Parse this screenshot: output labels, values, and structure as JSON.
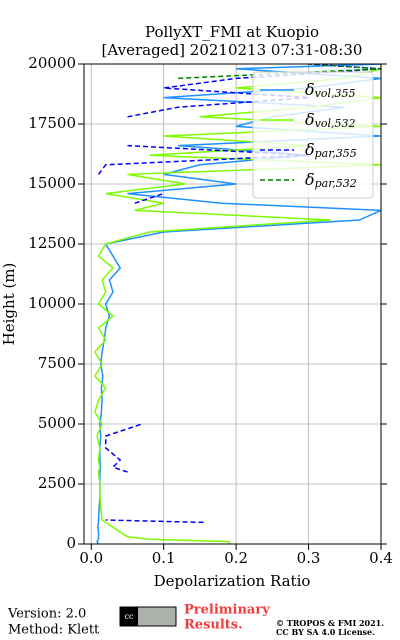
{
  "chart_data": {
    "type": "line",
    "orientation": "profile",
    "title": [
      "PollyXT_FMI at Kuopio",
      "[Averaged] 20210213 07:31-08:30"
    ],
    "x_label": "Depolarization Ratio",
    "y_label": "Height (m)",
    "xlim": [
      -0.01,
      0.4
    ],
    "ylim": [
      0,
      20000
    ],
    "xticks": [
      {
        "value": 0,
        "label": "0.0"
      },
      {
        "value": 0.1,
        "label": "0.1"
      },
      {
        "value": 0.2,
        "label": "0.2"
      },
      {
        "value": 0.3,
        "label": "0.3"
      },
      {
        "value": 0.4,
        "label": "0.4"
      }
    ],
    "yticks": [
      0,
      2500,
      5000,
      7500,
      10000,
      12500,
      15000,
      17500,
      20000
    ],
    "grid": true,
    "legend": "upper right",
    "heights": [
      0,
      100,
      200,
      300,
      500,
      700,
      900,
      1000,
      1500,
      2000,
      2500,
      3000,
      3200,
      3500,
      4000,
      4500,
      5000,
      5500,
      6000,
      6500,
      7000,
      7500,
      8000,
      8500,
      9000,
      9500,
      10000,
      10500,
      11000,
      11500,
      12000,
      12500,
      13000,
      13500,
      13900,
      14200,
      14600,
      15000,
      15400,
      15800,
      16200,
      16600,
      17000,
      17400,
      17800,
      18200,
      18600,
      19000,
      19400,
      19800,
      20000
    ],
    "series": [
      {
        "name": "δvol,355",
        "color": "#1e90ff",
        "dash": false,
        "values": [
          0.01,
          0.008,
          0.01,
          0.01,
          0.01,
          0.009,
          0.01,
          0.01,
          0.011,
          0.012,
          0.012,
          0.012,
          0.013,
          0.012,
          0.012,
          0.013,
          0.012,
          0.014,
          0.015,
          0.014,
          0.016,
          0.013,
          0.015,
          0.018,
          0.02,
          0.025,
          0.02,
          0.03,
          0.025,
          0.04,
          0.03,
          0.02,
          0.1,
          0.37,
          0.4,
          0.18,
          0.05,
          0.2,
          0.1,
          0.15,
          0.3,
          0.12,
          0.4,
          0.2,
          0.25,
          0.35,
          0.1,
          0.3,
          0.4,
          0.2,
          0.4
        ]
      },
      {
        "name": "δvol,532",
        "color": "#7cfc00",
        "dash": false,
        "values": [
          0.19,
          0.19,
          0.08,
          0.05,
          0.04,
          0.03,
          0.02,
          0.015,
          0.013,
          0.012,
          0.012,
          0.01,
          0.012,
          0.01,
          0.012,
          0.008,
          0.015,
          0.005,
          0.01,
          0.02,
          0.005,
          0.015,
          0.005,
          0.02,
          0.01,
          0.03,
          0.01,
          0.02,
          0.015,
          0.03,
          0.01,
          0.02,
          0.08,
          0.33,
          0.06,
          0.1,
          0.02,
          0.13,
          0.05,
          0.4,
          0.08,
          0.3,
          0.1,
          0.4,
          0.15,
          0.3,
          0.4,
          0.2,
          0.35,
          0.4,
          0.4
        ]
      },
      {
        "name": "δpar,355",
        "color": "#0000ff",
        "dash": true,
        "values": [
          null,
          null,
          null,
          null,
          null,
          null,
          0.155,
          0.02,
          null,
          null,
          null,
          0.05,
          0.03,
          0.04,
          0.02,
          0.02,
          0.07,
          null,
          null,
          null,
          null,
          null,
          null,
          null,
          null,
          null,
          null,
          null,
          null,
          null,
          null,
          null,
          null,
          null,
          null,
          0.06,
          0.1,
          null,
          0.01,
          0.02,
          0.3,
          0.05,
          null,
          null,
          0.05,
          0.12,
          0.3,
          0.1,
          0.2,
          0.4,
          0.3
        ]
      },
      {
        "name": "δpar,532",
        "color": "#008000",
        "dash": true,
        "values": [
          null,
          null,
          null,
          null,
          null,
          null,
          null,
          null,
          null,
          null,
          null,
          null,
          null,
          null,
          null,
          null,
          null,
          null,
          null,
          null,
          null,
          null,
          null,
          null,
          null,
          null,
          null,
          null,
          null,
          null,
          null,
          null,
          null,
          null,
          null,
          null,
          null,
          null,
          null,
          null,
          null,
          null,
          null,
          null,
          null,
          null,
          null,
          null,
          0.12,
          0.4,
          0.3
        ]
      }
    ]
  },
  "footer": {
    "version": "Version: 2.0",
    "method": "Method: Klett",
    "preliminary": "Preliminary",
    "results": "Results.",
    "copyright": "© TROPOS & FMI 2021.",
    "license": "CC BY SA 4.0 License."
  }
}
